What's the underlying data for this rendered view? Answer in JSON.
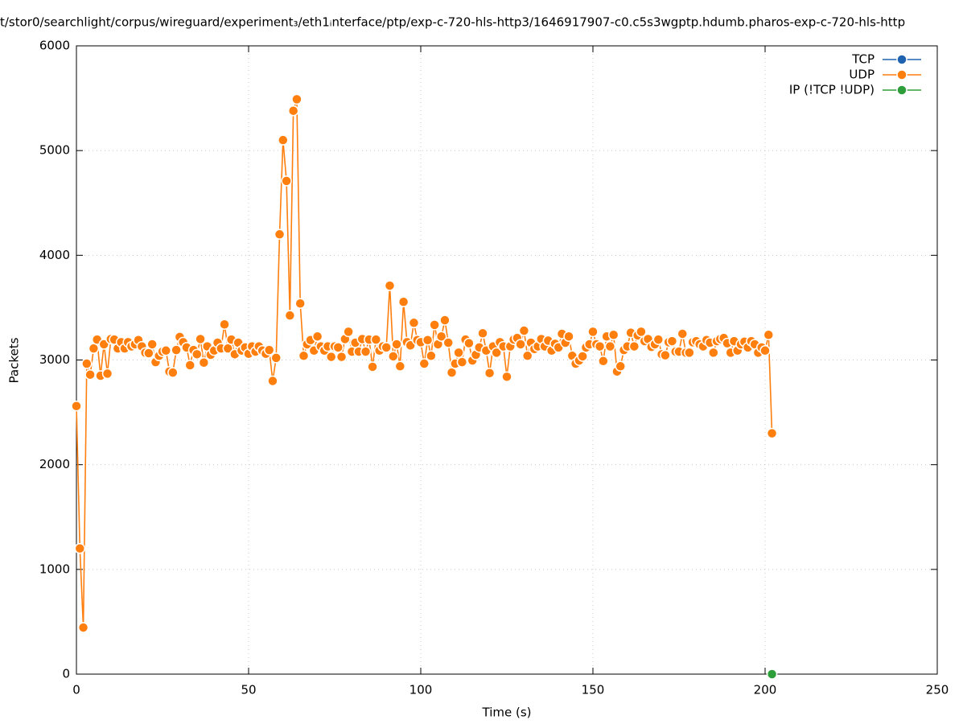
{
  "chart_data": {
    "type": "line",
    "title": "t/stor0/searchlight/corpus/wireguard/experiment₃/eth1ᵢnterface/ptp/exp-c-720-hls-http3/1646917907-c0.c5s3wgptp.hdumb.pharos-exp-c-720-hls-http",
    "x_label": "Time (s)",
    "y_label": "Packets",
    "xlim": [
      0,
      250
    ],
    "xticks": [
      0,
      50,
      100,
      150,
      200,
      250
    ],
    "ylim": [
      0,
      6000
    ],
    "yticks": [
      0,
      1000,
      2000,
      3000,
      4000,
      5000,
      6000
    ],
    "grid": true,
    "legend": "top-right",
    "series": [
      {
        "name": "TCP",
        "color": "#1f63b0",
        "x": [],
        "values": []
      },
      {
        "name": "UDP",
        "color": "#ff7f0e",
        "x": [
          0,
          1,
          2,
          3,
          4,
          5,
          6,
          7,
          8,
          9,
          10,
          11,
          12,
          13,
          14,
          15,
          16,
          17,
          18,
          19,
          20,
          21,
          22,
          23,
          24,
          25,
          26,
          27,
          28,
          29,
          30,
          31,
          32,
          33,
          34,
          35,
          36,
          37,
          38,
          39,
          40,
          41,
          42,
          43,
          44,
          45,
          46,
          47,
          48,
          49,
          50,
          51,
          52,
          53,
          54,
          55,
          56,
          57,
          58,
          59,
          60,
          61,
          62,
          63,
          64,
          65,
          66,
          67,
          68,
          69,
          70,
          71,
          72,
          73,
          74,
          75,
          76,
          77,
          78,
          79,
          80,
          81,
          82,
          83,
          84,
          85,
          86,
          87,
          88,
          89,
          90,
          91,
          92,
          93,
          94,
          95,
          96,
          97,
          98,
          99,
          100,
          101,
          102,
          103,
          104,
          105,
          106,
          107,
          108,
          109,
          110,
          111,
          112,
          113,
          114,
          115,
          116,
          117,
          118,
          119,
          120,
          121,
          122,
          123,
          124,
          125,
          126,
          127,
          128,
          129,
          130,
          131,
          132,
          133,
          134,
          135,
          136,
          137,
          138,
          139,
          140,
          141,
          142,
          143,
          144,
          145,
          146,
          147,
          148,
          149,
          150,
          151,
          152,
          153,
          154,
          155,
          156,
          157,
          158,
          159,
          160,
          161,
          162,
          163,
          164,
          165,
          166,
          167,
          168,
          169,
          170,
          171,
          172,
          173,
          174,
          175,
          176,
          177,
          178,
          179,
          180,
          181,
          182,
          183,
          184,
          185,
          186,
          187,
          188,
          189,
          190,
          191,
          192,
          193,
          194,
          195,
          196,
          197,
          198,
          199,
          200,
          201,
          202
        ],
        "values": [
          2560,
          1200,
          445,
          2965,
          2860,
          3110,
          3195,
          2850,
          3150,
          2870,
          3200,
          3195,
          3110,
          3170,
          3110,
          3170,
          3130,
          3150,
          3190,
          3130,
          3070,
          3065,
          3150,
          2980,
          3040,
          3080,
          3090,
          2890,
          2880,
          3095,
          3220,
          3170,
          3120,
          2950,
          3095,
          3055,
          3200,
          2975,
          3130,
          3050,
          3090,
          3165,
          3110,
          3340,
          3110,
          3195,
          3055,
          3165,
          3090,
          3120,
          3060,
          3130,
          3080,
          3130,
          3090,
          3060,
          3095,
          2800,
          3020,
          4200,
          5100,
          4710,
          3425,
          5380,
          5490,
          3540,
          3040,
          3150,
          3190,
          3090,
          3225,
          3130,
          3090,
          3130,
          3030,
          3130,
          3120,
          3030,
          3200,
          3270,
          3080,
          3165,
          3080,
          3200,
          3080,
          3195,
          2935,
          3195,
          3090,
          3130,
          3120,
          3710,
          3035,
          3150,
          2940,
          3555,
          3170,
          3140,
          3355,
          3190,
          3170,
          2965,
          3190,
          3040,
          3335,
          3150,
          3225,
          3380,
          3165,
          2880,
          2965,
          3070,
          2980,
          3195,
          3160,
          2995,
          3050,
          3120,
          3255,
          3090,
          2875,
          3130,
          3070,
          3170,
          3130,
          2840,
          3130,
          3195,
          3210,
          3150,
          3280,
          3040,
          3165,
          3105,
          3130,
          3200,
          3130,
          3185,
          3090,
          3155,
          3120,
          3250,
          3165,
          3225,
          3040,
          2965,
          2995,
          3035,
          3120,
          3150,
          3270,
          3150,
          3130,
          2990,
          3225,
          3130,
          3240,
          2890,
          2940,
          3095,
          3130,
          3260,
          3130,
          3235,
          3270,
          3180,
          3200,
          3125,
          3150,
          3195,
          3055,
          3045,
          3170,
          3180,
          3080,
          3080,
          3250,
          3070,
          3070,
          3170,
          3180,
          3150,
          3130,
          3190,
          3165,
          3070,
          3180,
          3200,
          3210,
          3160,
          3070,
          3180,
          3090,
          3150,
          3175,
          3120,
          3180,
          3150,
          3070,
          3120,
          3090,
          3240,
          2300
        ]
      },
      {
        "name": "IP (!TCP  !UDP)",
        "color": "#2e9e3a",
        "x": [
          202
        ],
        "values": [
          0
        ]
      }
    ]
  }
}
